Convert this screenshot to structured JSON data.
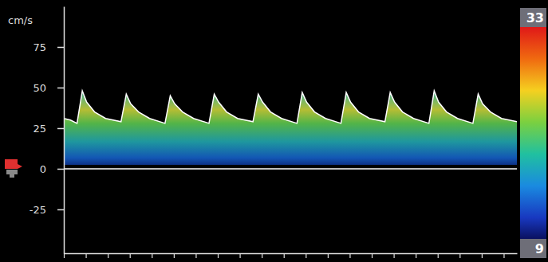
{
  "chart_data": {
    "type": "area",
    "y_label": "cm/s",
    "x": [
      0,
      0.15,
      0.3,
      0.42,
      0.52,
      0.7,
      0.95,
      1.3,
      1.42,
      1.52,
      1.7,
      1.95,
      2.3,
      2.42,
      2.52,
      2.7,
      2.95,
      3.3,
      3.42,
      3.52,
      3.7,
      3.95,
      4.3,
      4.42,
      4.52,
      4.7,
      4.95,
      5.3,
      5.42,
      5.52,
      5.7,
      5.95,
      6.3,
      6.42,
      6.52,
      6.7,
      6.95,
      7.3,
      7.42,
      7.52,
      7.7,
      7.95,
      8.3,
      8.42,
      8.52,
      8.7,
      8.95,
      9.3,
      9.42,
      9.52,
      9.7,
      9.95,
      10.3
    ],
    "values": [
      31,
      30,
      28,
      48,
      41,
      35,
      31,
      29,
      46,
      40,
      35,
      31,
      28,
      45,
      40,
      35,
      31,
      28,
      46,
      41,
      35,
      31,
      29,
      46,
      41,
      35,
      31,
      28,
      47,
      41,
      35,
      31,
      28,
      47,
      41,
      35,
      31,
      29,
      47,
      41,
      35,
      31,
      28,
      48,
      41,
      35,
      31,
      28,
      46,
      40,
      35,
      31,
      29
    ],
    "xlim": [
      0,
      10.3
    ],
    "xticks": [
      0,
      0.5,
      1,
      1.5,
      2,
      2.5,
      3,
      3.5,
      4,
      4.5,
      5,
      5.5,
      6,
      6.5,
      7,
      7.5,
      8,
      8.5,
      9,
      9.5,
      10
    ],
    "ylim": [
      -52,
      100
    ],
    "yticks": [
      -25,
      0,
      25,
      50,
      75
    ],
    "color": "#ffffff",
    "tick_labels": "y",
    "colorbar_range": [
      9,
      33
    ],
    "colorbar_ticks": [
      9,
      33
    ]
  }
}
